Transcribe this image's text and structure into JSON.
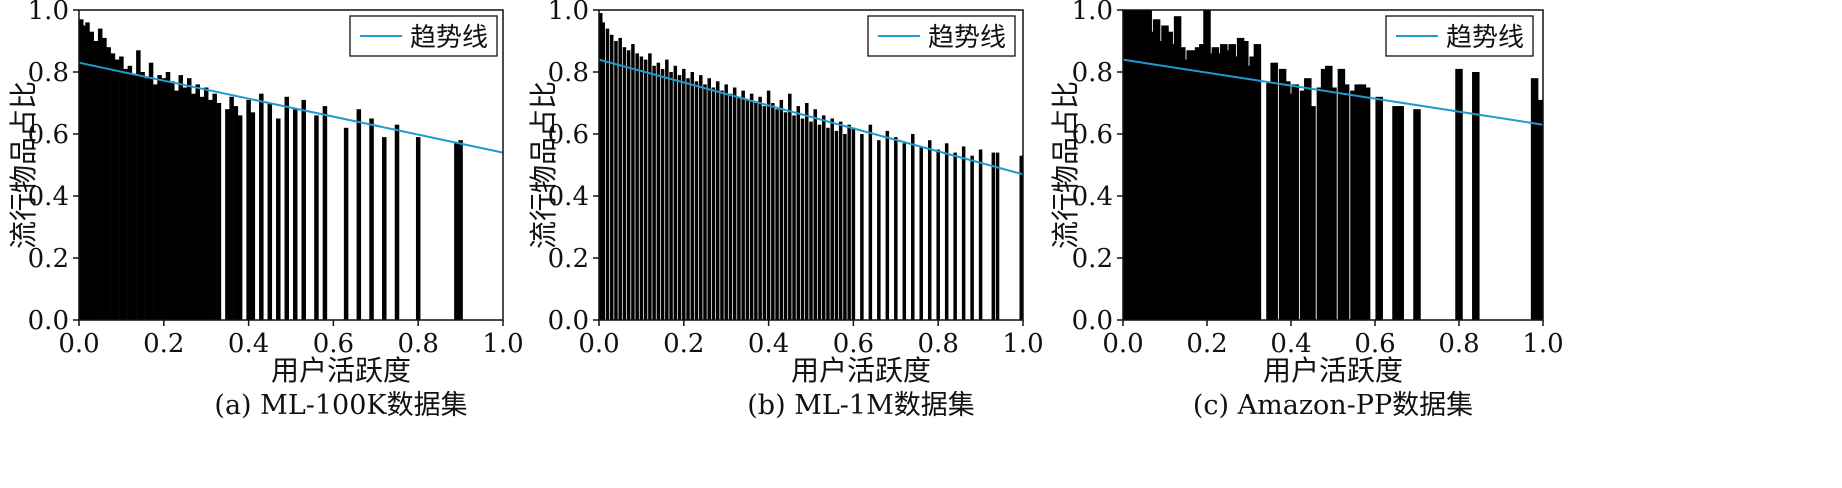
{
  "chart_data": [
    {
      "type": "bar",
      "caption": "(a) ML-100K数据集",
      "xlabel": "用户活跃度",
      "ylabel": "流行物品占比",
      "xlim": [
        0,
        1
      ],
      "ylim": [
        0,
        1
      ],
      "xticks": [
        "0.0",
        "0.2",
        "0.4",
        "0.6",
        "0.8",
        "1.0"
      ],
      "yticks": [
        "0.0",
        "0.2",
        "0.4",
        "0.6",
        "0.8",
        "1.0"
      ],
      "legend": {
        "label": "趋势线",
        "placement": "top-right"
      },
      "trend": {
        "x": [
          0,
          1
        ],
        "y": [
          0.83,
          0.54
        ]
      },
      "colors": {
        "bars": "#000000",
        "trend": "#1f9bd1"
      },
      "bars": {
        "x": [
          0.0,
          0.01,
          0.02,
          0.03,
          0.04,
          0.05,
          0.06,
          0.07,
          0.08,
          0.09,
          0.1,
          0.11,
          0.12,
          0.13,
          0.14,
          0.15,
          0.16,
          0.17,
          0.18,
          0.19,
          0.2,
          0.21,
          0.22,
          0.23,
          0.24,
          0.25,
          0.26,
          0.27,
          0.28,
          0.29,
          0.3,
          0.31,
          0.32,
          0.33,
          0.35,
          0.36,
          0.37,
          0.38,
          0.4,
          0.41,
          0.43,
          0.45,
          0.47,
          0.49,
          0.51,
          0.53,
          0.56,
          0.58,
          0.63,
          0.66,
          0.69,
          0.72,
          0.75,
          0.8,
          0.89,
          0.9
        ],
        "values": [
          0.97,
          0.95,
          0.96,
          0.93,
          0.9,
          0.94,
          0.91,
          0.88,
          0.86,
          0.84,
          0.85,
          0.81,
          0.82,
          0.79,
          0.87,
          0.8,
          0.78,
          0.83,
          0.76,
          0.79,
          0.78,
          0.8,
          0.77,
          0.74,
          0.79,
          0.75,
          0.78,
          0.73,
          0.76,
          0.72,
          0.75,
          0.71,
          0.73,
          0.7,
          0.68,
          0.72,
          0.69,
          0.66,
          0.71,
          0.67,
          0.73,
          0.7,
          0.65,
          0.72,
          0.68,
          0.71,
          0.66,
          0.69,
          0.62,
          0.68,
          0.65,
          0.59,
          0.63,
          0.59,
          0.57,
          0.58
        ]
      }
    },
    {
      "type": "bar",
      "caption": "(b) ML-1M数据集",
      "xlabel": "用户活跃度",
      "ylabel": "流行物品占比",
      "xlim": [
        0,
        1
      ],
      "ylim": [
        0,
        1
      ],
      "xticks": [
        "0.0",
        "0.2",
        "0.4",
        "0.6",
        "0.8",
        "1.0"
      ],
      "yticks": [
        "0.0",
        "0.2",
        "0.4",
        "0.6",
        "0.8",
        "1.0"
      ],
      "legend": {
        "label": "趋势线",
        "placement": "top-right"
      },
      "trend": {
        "x": [
          0,
          1
        ],
        "y": [
          0.84,
          0.47
        ]
      },
      "colors": {
        "bars": "#000000",
        "trend": "#1f9bd1"
      },
      "bars": {
        "x": [
          0.0,
          0.01,
          0.02,
          0.03,
          0.04,
          0.05,
          0.06,
          0.07,
          0.08,
          0.09,
          0.1,
          0.11,
          0.12,
          0.13,
          0.14,
          0.15,
          0.16,
          0.17,
          0.18,
          0.19,
          0.2,
          0.21,
          0.22,
          0.23,
          0.24,
          0.25,
          0.26,
          0.27,
          0.28,
          0.29,
          0.3,
          0.31,
          0.32,
          0.33,
          0.34,
          0.35,
          0.36,
          0.37,
          0.38,
          0.39,
          0.4,
          0.41,
          0.42,
          0.43,
          0.44,
          0.45,
          0.46,
          0.47,
          0.48,
          0.49,
          0.5,
          0.51,
          0.52,
          0.53,
          0.54,
          0.55,
          0.56,
          0.57,
          0.58,
          0.59,
          0.6,
          0.62,
          0.64,
          0.66,
          0.68,
          0.7,
          0.72,
          0.74,
          0.76,
          0.78,
          0.8,
          0.82,
          0.84,
          0.86,
          0.88,
          0.9,
          0.93,
          0.94,
          1.0
        ],
        "values": [
          0.99,
          0.96,
          0.94,
          0.92,
          0.9,
          0.91,
          0.88,
          0.87,
          0.89,
          0.86,
          0.85,
          0.84,
          0.86,
          0.82,
          0.83,
          0.81,
          0.84,
          0.8,
          0.82,
          0.79,
          0.81,
          0.78,
          0.8,
          0.77,
          0.79,
          0.76,
          0.78,
          0.75,
          0.77,
          0.74,
          0.76,
          0.73,
          0.75,
          0.72,
          0.74,
          0.71,
          0.73,
          0.7,
          0.72,
          0.69,
          0.74,
          0.7,
          0.68,
          0.71,
          0.67,
          0.73,
          0.66,
          0.69,
          0.65,
          0.7,
          0.64,
          0.68,
          0.63,
          0.66,
          0.62,
          0.65,
          0.61,
          0.64,
          0.6,
          0.63,
          0.62,
          0.6,
          0.63,
          0.58,
          0.61,
          0.59,
          0.57,
          0.6,
          0.56,
          0.58,
          0.55,
          0.57,
          0.54,
          0.56,
          0.53,
          0.55,
          0.54,
          0.54,
          0.53
        ]
      }
    },
    {
      "type": "bar",
      "caption": "(c) Amazon-PP数据集",
      "xlabel": "用户活跃度",
      "ylabel": "流行物品占比",
      "xlim": [
        0,
        1
      ],
      "ylim": [
        0,
        1
      ],
      "xticks": [
        "0.0",
        "0.2",
        "0.4",
        "0.6",
        "0.8",
        "1.0"
      ],
      "yticks": [
        "0.0",
        "0.2",
        "0.4",
        "0.6",
        "0.8",
        "1.0"
      ],
      "legend": {
        "label": "趋势线",
        "placement": "top-right"
      },
      "trend": {
        "x": [
          0,
          1
        ],
        "y": [
          0.84,
          0.63
        ]
      },
      "colors": {
        "bars": "#000000",
        "trend": "#1f9bd1"
      },
      "bars": {
        "x": [
          0.0,
          0.01,
          0.02,
          0.03,
          0.04,
          0.05,
          0.06,
          0.07,
          0.08,
          0.09,
          0.1,
          0.11,
          0.12,
          0.13,
          0.14,
          0.15,
          0.16,
          0.17,
          0.18,
          0.19,
          0.2,
          0.21,
          0.22,
          0.23,
          0.24,
          0.25,
          0.26,
          0.27,
          0.28,
          0.29,
          0.3,
          0.31,
          0.32,
          0.35,
          0.36,
          0.38,
          0.39,
          0.4,
          0.41,
          0.43,
          0.44,
          0.45,
          0.47,
          0.48,
          0.49,
          0.5,
          0.52,
          0.53,
          0.55,
          0.56,
          0.57,
          0.58,
          0.61,
          0.65,
          0.66,
          0.7,
          0.8,
          0.84,
          0.98,
          0.99
        ],
        "values": [
          1.0,
          1.0,
          1.0,
          1.0,
          1.0,
          1.0,
          1.0,
          0.93,
          0.97,
          0.9,
          0.95,
          0.93,
          0.89,
          0.98,
          0.88,
          0.84,
          0.87,
          0.87,
          0.88,
          0.89,
          1.0,
          0.86,
          0.88,
          0.86,
          0.89,
          0.87,
          0.89,
          0.85,
          0.91,
          0.9,
          0.82,
          0.85,
          0.89,
          0.77,
          0.83,
          0.81,
          0.77,
          0.73,
          0.76,
          0.74,
          0.78,
          0.69,
          0.75,
          0.81,
          0.82,
          0.75,
          0.81,
          0.76,
          0.74,
          0.76,
          0.76,
          0.75,
          0.72,
          0.69,
          0.69,
          0.68,
          0.81,
          0.8,
          0.78,
          0.71
        ]
      }
    }
  ]
}
